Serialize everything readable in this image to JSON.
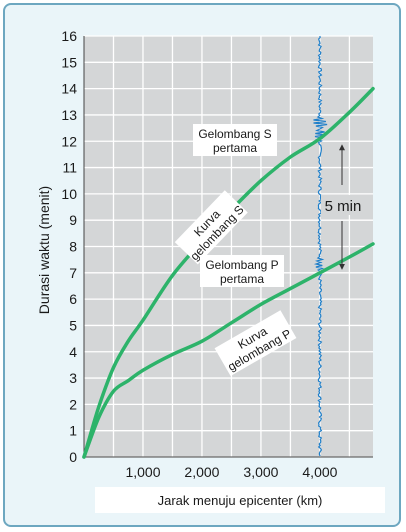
{
  "chart_data": {
    "type": "line",
    "ylabel": "Durasi waktu (menit)",
    "xlabel": "Jarak menuju epicenter (km)",
    "xlim": [
      0,
      4900
    ],
    "ylim": [
      0,
      16
    ],
    "x_ticks": [
      1000,
      2000,
      3000,
      4000
    ],
    "x_tick_labels": [
      "1,000",
      "2,000",
      "3,000",
      "4,000"
    ],
    "y_ticks": [
      0,
      1,
      2,
      3,
      4,
      5,
      6,
      7,
      8,
      9,
      10,
      11,
      12,
      13,
      14,
      15,
      16
    ],
    "y_tick_labels": [
      "0",
      "1",
      "2",
      "3",
      "4",
      "5",
      "6",
      "7",
      "8",
      "9",
      "10",
      "11",
      "12",
      "13",
      "14",
      "15",
      "16"
    ],
    "grid": true,
    "colors": {
      "curve": "#2db36a",
      "seismogram": "#1f7fc9",
      "grid": "#ffffff",
      "plot_bg": "#d4d6d7"
    },
    "series": [
      {
        "label_lines": [
          "Kurva",
          "gelombang S"
        ],
        "x": [
          0,
          250,
          500,
          750,
          1000,
          1500,
          2000,
          2500,
          3000,
          3500,
          4000,
          4500,
          4900
        ],
        "y": [
          0,
          1.9,
          3.4,
          4.4,
          5.2,
          6.9,
          8.2,
          9.4,
          10.5,
          11.4,
          12.1,
          13.1,
          14.0
        ]
      },
      {
        "label_lines": [
          "Kurva",
          "gelombang P"
        ],
        "x": [
          0,
          250,
          500,
          750,
          1000,
          1500,
          2000,
          2500,
          3000,
          3500,
          4000,
          4500,
          4900
        ],
        "y": [
          0,
          1.5,
          2.5,
          2.9,
          3.3,
          3.9,
          4.4,
          5.1,
          5.8,
          6.4,
          7.0,
          7.6,
          8.1
        ]
      }
    ],
    "annotations": {
      "s_arrival": [
        "Gelombang S",
        "pertama"
      ],
      "p_arrival": [
        "Gelombang P",
        "pertama"
      ],
      "interval": "5 min"
    },
    "seismogram_x": 4000,
    "s_burst_y": 12.5,
    "p_burst_y": 7.3
  }
}
